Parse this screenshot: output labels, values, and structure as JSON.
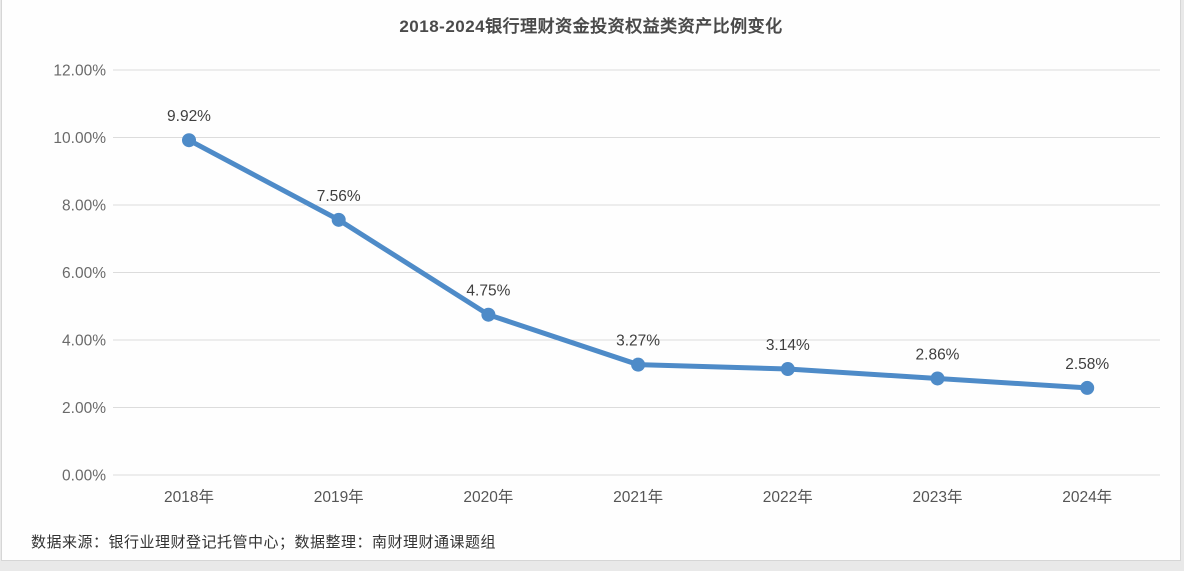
{
  "title": "2018-2024银行理财资金投资权益类资产比例变化",
  "footer": "数据来源：银行业理财登记托管中心；数据整理：南财理财通课题组",
  "chart_data": {
    "type": "line",
    "title": "2018-2024银行理财资金投资权益类资产比例变化",
    "categories": [
      "2018年",
      "2019年",
      "2020年",
      "2021年",
      "2022年",
      "2023年",
      "2024年"
    ],
    "values": [
      9.92,
      7.56,
      4.75,
      3.27,
      3.14,
      2.86,
      2.58
    ],
    "data_labels": [
      "9.92%",
      "7.56%",
      "4.75%",
      "3.27%",
      "3.14%",
      "2.86%",
      "2.58%"
    ],
    "y_tick_labels": [
      "12.00%",
      "10.00%",
      "8.00%",
      "6.00%",
      "4.00%",
      "2.00%",
      "0.00%"
    ],
    "ylim": [
      0,
      12
    ],
    "y_tick_step": 2,
    "xlabel": "",
    "ylabel": "",
    "grid": "horizontal",
    "legend_position": "none",
    "line_color": "#4e8bc8",
    "marker_color": "#4e8bc8",
    "grid_color": "#dcdcdc",
    "source_note": "数据来源：银行业理财登记托管中心；数据整理：南财理财通课题组"
  }
}
